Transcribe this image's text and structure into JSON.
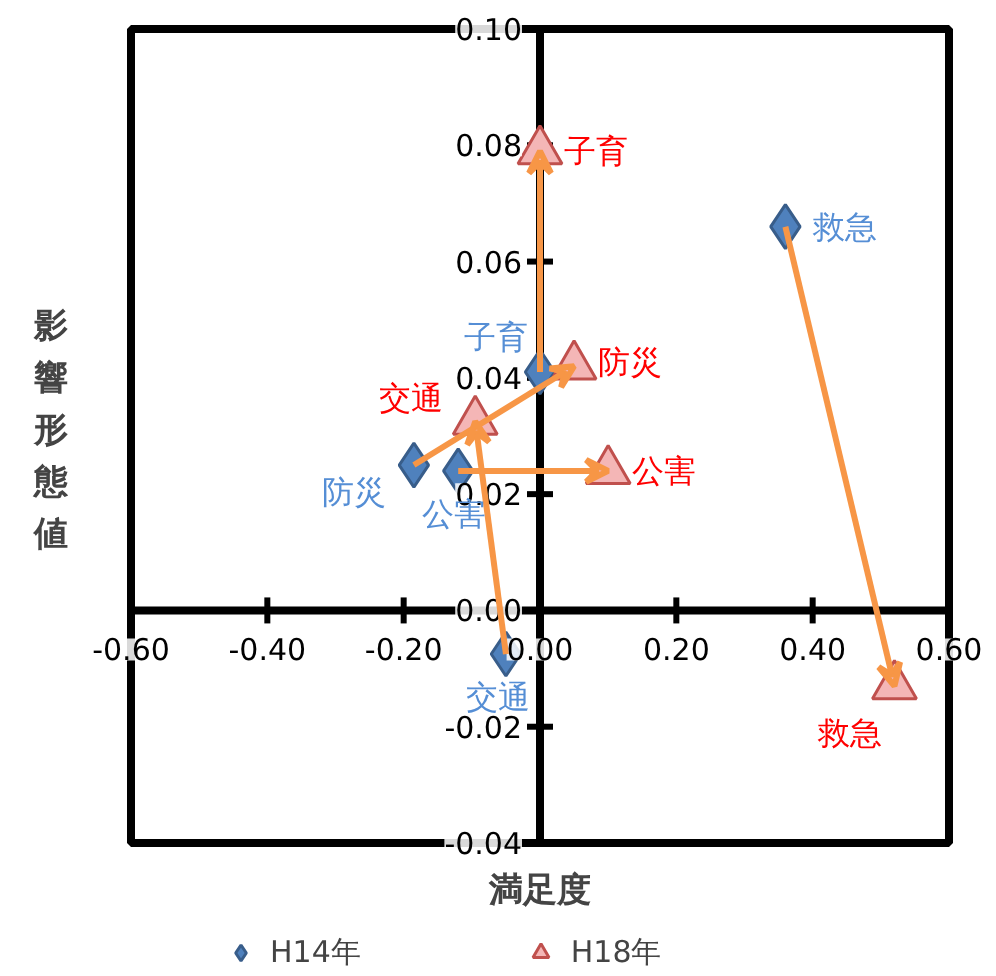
{
  "chart_data": {
    "type": "scatter",
    "xlabel": "満足度",
    "ylabel": "影響形態値",
    "xlim": [
      -0.6,
      0.6
    ],
    "ylim": [
      -0.04,
      0.1
    ],
    "xticks": [
      {
        "value": -0.6,
        "label": "-0.60"
      },
      {
        "value": -0.4,
        "label": "-0.40"
      },
      {
        "value": -0.2,
        "label": "-0.20"
      },
      {
        "value": 0,
        "label": "0.00"
      },
      {
        "value": 0.2,
        "label": "0.20"
      },
      {
        "value": 0.4,
        "label": "0.40"
      },
      {
        "value": 0.6,
        "label": "0.60"
      }
    ],
    "yticks": [
      {
        "value": -0.04,
        "label": "-0.04"
      },
      {
        "value": -0.02,
        "label": "-0.02"
      },
      {
        "value": 0,
        "label": "0.00"
      },
      {
        "value": 0.02,
        "label": "0.02"
      },
      {
        "value": 0.04,
        "label": "0.04"
      },
      {
        "value": 0.06,
        "label": "0.06"
      },
      {
        "value": 0.08,
        "label": "0.08"
      },
      {
        "value": 0.1,
        "label": "0.10"
      }
    ],
    "grid": false,
    "legend": "bottom",
    "series": [
      {
        "name": "H14年",
        "color": "#4f81bd",
        "marker": "diamond",
        "x": [
          0.36,
          0.0,
          -0.185,
          -0.12,
          -0.05
        ],
        "values": [
          0.066,
          0.041,
          0.025,
          0.024,
          -0.0075
        ],
        "value_labels": [
          "救急",
          "子育",
          "防災",
          "公害",
          "交通"
        ]
      },
      {
        "name": "H18年",
        "color": "#f4b6b6",
        "marker": "triangle",
        "x": [
          0.52,
          0.0,
          0.05,
          0.1,
          -0.095
        ],
        "values": [
          -0.013,
          0.079,
          0.042,
          0.024,
          0.0325
        ],
        "value_labels": [
          "救急",
          "子育",
          "防災",
          "公害",
          "交通"
        ]
      }
    ]
  }
}
